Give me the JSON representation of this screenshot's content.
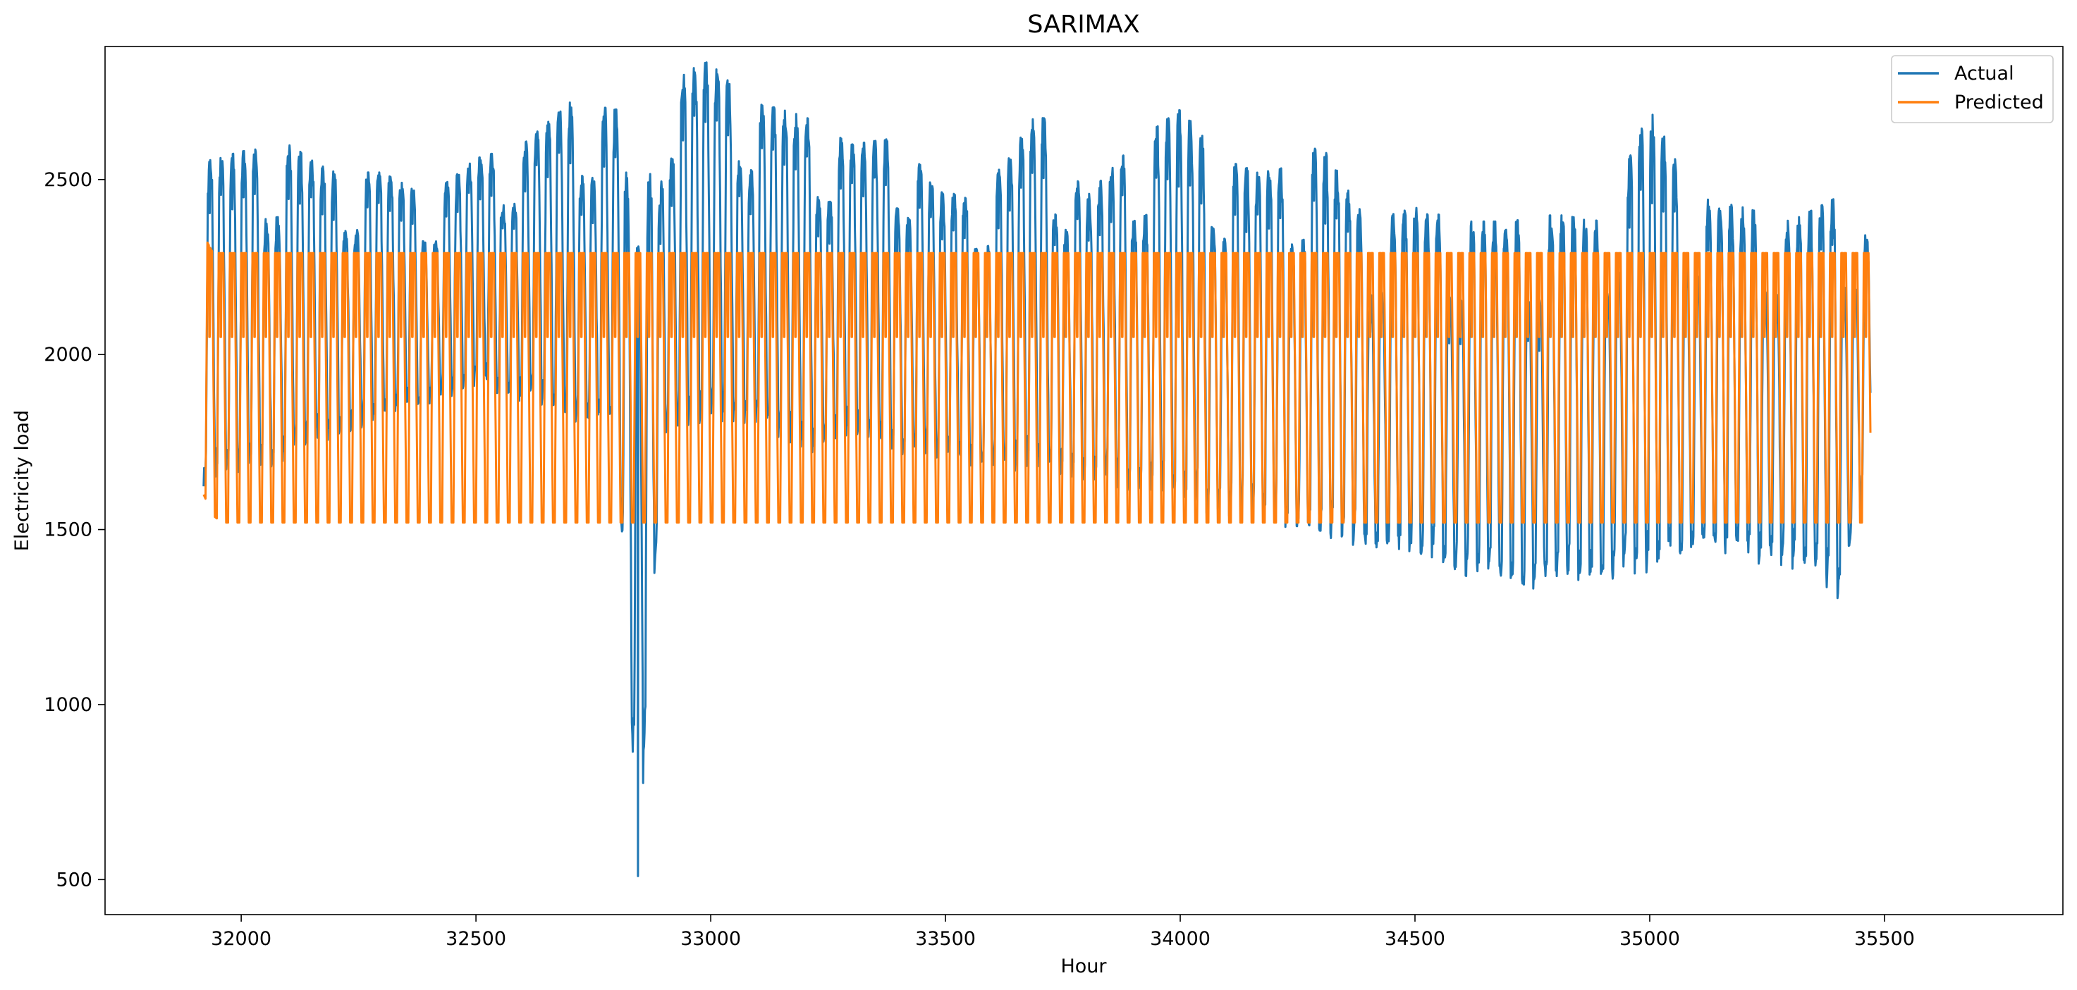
{
  "chart_data": {
    "type": "line",
    "title": "SARIMAX",
    "xlabel": "Hour",
    "ylabel": "Electricity load",
    "xlim": [
      31710,
      35880
    ],
    "ylim": [
      400,
      2880
    ],
    "xticks": [
      32000,
      32500,
      33000,
      33500,
      34000,
      34500,
      35000,
      35500
    ],
    "yticks": [
      500,
      1000,
      1500,
      2000,
      2500
    ],
    "legend": {
      "position": "top-right",
      "entries": [
        "Actual",
        "Predicted"
      ]
    },
    "grid": false,
    "x_range": [
      31920,
      35470
    ],
    "series": [
      {
        "name": "Actual",
        "color": "#1f77b4",
        "period_hours": 24,
        "x": [
          31920,
          32000,
          32100,
          32200,
          32300,
          32400,
          32500,
          32600,
          32700,
          32800,
          32845,
          32900,
          33000,
          33100,
          33200,
          33300,
          33400,
          33500,
          33600,
          33700,
          33800,
          33900,
          34000,
          34100,
          34200,
          34300,
          34400,
          34500,
          34600,
          34700,
          34800,
          34900,
          35000,
          35100,
          35200,
          35300,
          35400,
          35470
        ],
        "daily_max": [
          2550,
          2580,
          2600,
          2520,
          2520,
          2450,
          2560,
          2600,
          2720,
          2700,
          2300,
          2780,
          2840,
          2720,
          2680,
          2600,
          2620,
          2450,
          2500,
          2700,
          2450,
          2600,
          2700,
          2550,
          2520,
          2600,
          2380,
          2420,
          2380,
          2380,
          2400,
          2380,
          2700,
          2450,
          2420,
          2380,
          2450,
          2330
        ],
        "daily_min": [
          1600,
          1650,
          1680,
          1750,
          1800,
          1850,
          1900,
          1850,
          1800,
          1750,
          510,
          1750,
          1800,
          1780,
          1700,
          1750,
          1700,
          1680,
          1650,
          1650,
          1620,
          1600,
          1550,
          1520,
          1500,
          1450,
          1420,
          1400,
          1350,
          1290,
          1320,
          1330,
          1340,
          1420,
          1400,
          1380,
          1290,
          1640
        ],
        "anomaly": {
          "x": 32845,
          "y": 510
        }
      },
      {
        "name": "Predicted",
        "color": "#ff7f0e",
        "period_hours": 24,
        "x": [
          31920,
          31940,
          31960,
          35470
        ],
        "daily_max": [
          2340,
          2290,
          2290,
          2290
        ],
        "daily_min": [
          1600,
          1540,
          1520,
          1520
        ],
        "daily_mid": [
          2050,
          2050,
          2050,
          2050
        ]
      }
    ]
  }
}
